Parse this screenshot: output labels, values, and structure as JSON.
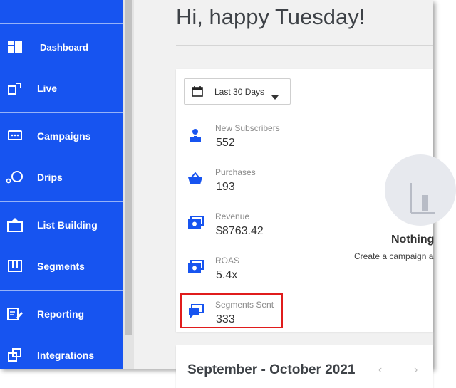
{
  "sidebar": {
    "items": [
      {
        "label": "Dashboard",
        "icon": "dashboard-icon"
      },
      {
        "label": "Live",
        "icon": "live-icon"
      },
      {
        "label": "Campaigns",
        "icon": "campaigns-icon"
      },
      {
        "label": "Drips",
        "icon": "drips-icon"
      },
      {
        "label": "List Building",
        "icon": "list-building-icon"
      },
      {
        "label": "Segments",
        "icon": "segments-icon"
      },
      {
        "label": "Reporting",
        "icon": "reporting-icon"
      },
      {
        "label": "Integrations",
        "icon": "integrations-icon"
      }
    ],
    "active": "Dashboard"
  },
  "main": {
    "greeting": "Hi, happy Tuesday!",
    "date_range": {
      "selected": "Last 30 Days"
    },
    "metrics": [
      {
        "label": "New Subscribers",
        "value": "552",
        "icon": "subscriber-icon"
      },
      {
        "label": "Purchases",
        "value": "193",
        "icon": "basket-icon"
      },
      {
        "label": "Revenue",
        "value": "$8763.42",
        "icon": "revenue-icon"
      },
      {
        "label": "ROAS",
        "value": "5.4x",
        "icon": "roas-icon"
      },
      {
        "label": "Segments Sent",
        "value": "333",
        "icon": "chat-icon"
      }
    ],
    "empty_state": {
      "title": "Nothing",
      "subtitle": "Create a campaign a"
    },
    "calendar_card": {
      "period": "September - October 2021"
    }
  },
  "colors": {
    "sidebar": "#1754f0",
    "accent": "#1754f0",
    "highlight": "#e01c1c"
  }
}
